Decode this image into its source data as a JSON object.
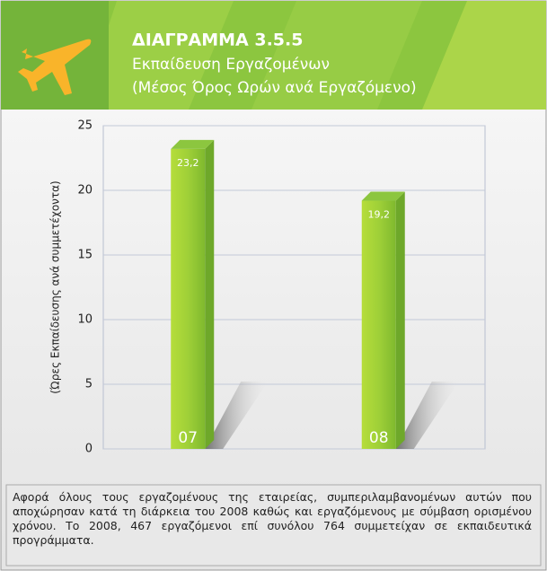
{
  "chart_data": {
    "type": "bar",
    "title": "ΔΙΑΓΡΑΜΜΑ 3.5.5",
    "subtitle": [
      "Εκπαίδευση Εργαζομένων",
      "(Μέσος Όρος Ωρών ανά Εργαζόμενο)"
    ],
    "ylabel": "(Ώρες Εκπαίδευσης ανά συμμετέχοντα)",
    "categories": [
      "07",
      "08"
    ],
    "values": [
      23.2,
      19.2
    ],
    "value_labels": [
      "23,2",
      "19,2"
    ],
    "color": "#8cc63f",
    "ylim": [
      0,
      25
    ],
    "yticks": [
      0,
      5,
      10,
      15,
      20,
      25
    ],
    "grid": true,
    "note": "Αφορά όλους τους εργαζομένους της εταιρείας, συμπεριλαμβανομένων αυτών που αποχώρησαν κατά τη διάρκεια του 2008 καθώς και εργαζόμενους με σύμβαση ορισμένου χρόνου. Το 2008, 467 εργαζόμενοι επί συνόλου 764 συμμετείχαν σε εκπαιδευτικά προγράμματα."
  }
}
